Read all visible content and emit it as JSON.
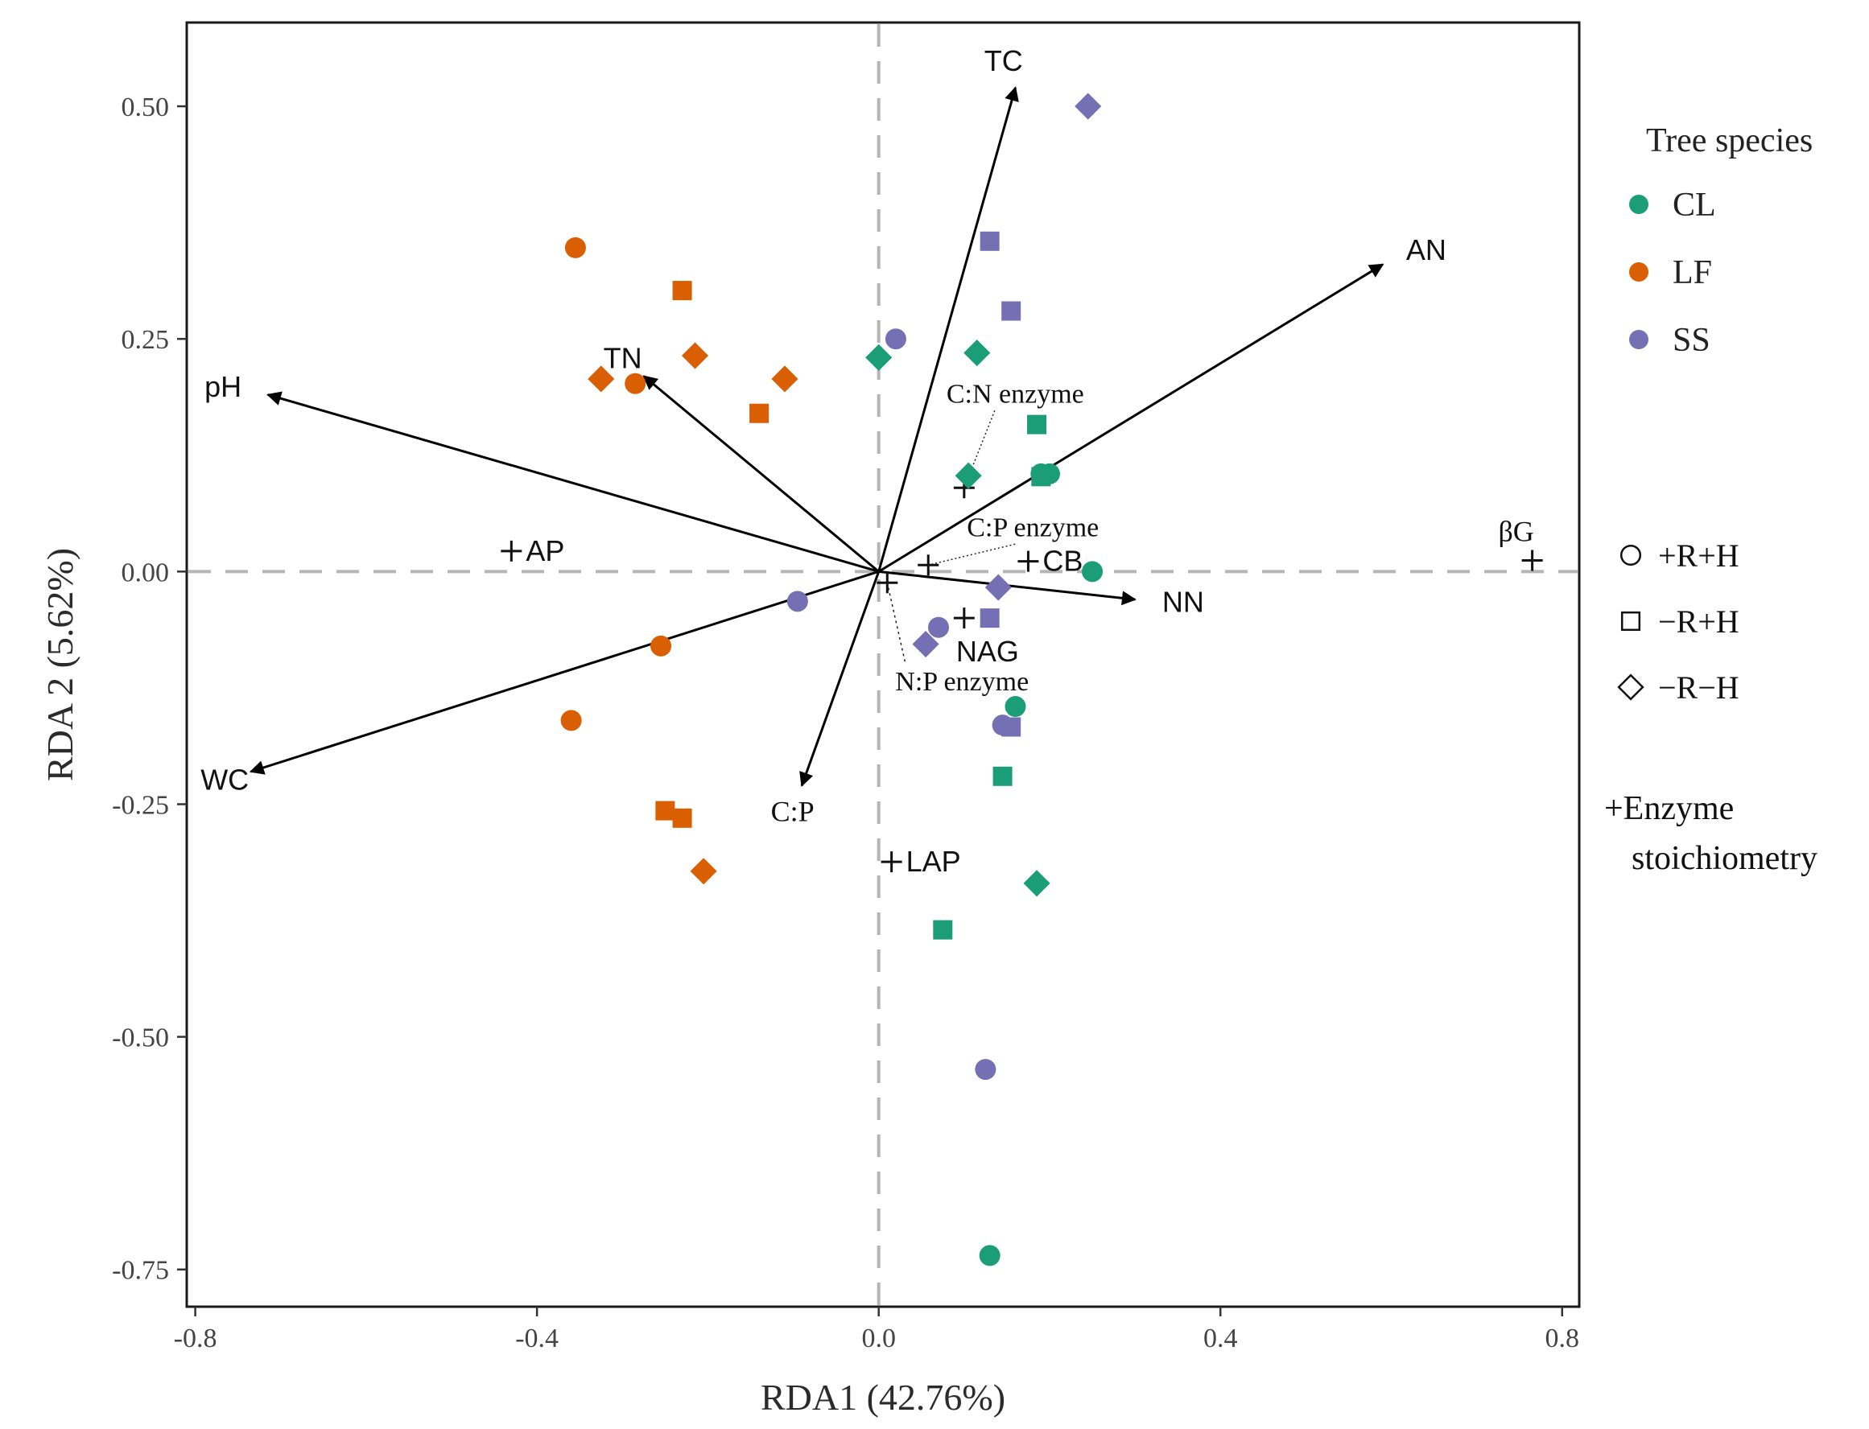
{
  "chart_data": {
    "type": "scatter",
    "subtype": "RDA biplot",
    "title": "",
    "xlabel": "RDA1 (42.76%)",
    "ylabel": "RDA 2 (5.62%)",
    "xlim": [
      -0.81,
      0.82
    ],
    "ylim": [
      -0.79,
      0.59
    ],
    "xticks": [
      -0.8,
      -0.4,
      0.0,
      0.4,
      0.8
    ],
    "xtick_labels": [
      "-0.8",
      "-0.4",
      "0.0",
      "0.4",
      "0.8"
    ],
    "yticks": [
      -0.75,
      -0.5,
      -0.25,
      0.0,
      0.25,
      0.5
    ],
    "ytick_labels": [
      "-0.75",
      "-0.50",
      "-0.25",
      "0.00",
      "0.25",
      "0.50"
    ],
    "grid": false,
    "reference_lines": {
      "x": 0,
      "y": 0,
      "style": "dashed"
    },
    "colors": {
      "CL": "#1b9e77",
      "LF": "#d95f02",
      "SS": "#7570b3",
      "arrow": "#000000",
      "refline": "#b5b5b5"
    },
    "series": [
      {
        "name": "CL",
        "points": [
          {
            "x": 0.25,
            "y": 0.0,
            "shape": "circle"
          },
          {
            "x": 0.2,
            "y": 0.105,
            "shape": "circle"
          },
          {
            "x": 0.19,
            "y": 0.105,
            "shape": "circle"
          },
          {
            "x": 0.16,
            "y": -0.145,
            "shape": "circle"
          },
          {
            "x": 0.13,
            "y": -0.735,
            "shape": "circle"
          },
          {
            "x": 0.185,
            "y": 0.158,
            "shape": "square"
          },
          {
            "x": 0.19,
            "y": 0.102,
            "shape": "square"
          },
          {
            "x": 0.145,
            "y": -0.22,
            "shape": "square"
          },
          {
            "x": 0.075,
            "y": -0.385,
            "shape": "square"
          },
          {
            "x": 0.0,
            "y": 0.23,
            "shape": "diamond"
          },
          {
            "x": 0.115,
            "y": 0.235,
            "shape": "diamond"
          },
          {
            "x": 0.105,
            "y": 0.103,
            "shape": "diamond"
          },
          {
            "x": 0.185,
            "y": -0.335,
            "shape": "diamond"
          }
        ]
      },
      {
        "name": "LF",
        "points": [
          {
            "x": -0.355,
            "y": 0.348,
            "shape": "circle"
          },
          {
            "x": -0.285,
            "y": 0.202,
            "shape": "circle"
          },
          {
            "x": -0.255,
            "y": -0.08,
            "shape": "circle"
          },
          {
            "x": -0.36,
            "y": -0.16,
            "shape": "circle"
          },
          {
            "x": -0.23,
            "y": 0.302,
            "shape": "square"
          },
          {
            "x": -0.14,
            "y": 0.17,
            "shape": "square"
          },
          {
            "x": -0.25,
            "y": -0.257,
            "shape": "square"
          },
          {
            "x": -0.23,
            "y": -0.265,
            "shape": "square"
          },
          {
            "x": -0.215,
            "y": 0.232,
            "shape": "diamond"
          },
          {
            "x": -0.325,
            "y": 0.207,
            "shape": "diamond"
          },
          {
            "x": -0.11,
            "y": 0.207,
            "shape": "diamond"
          },
          {
            "x": -0.205,
            "y": -0.322,
            "shape": "diamond"
          }
        ]
      },
      {
        "name": "SS",
        "points": [
          {
            "x": 0.02,
            "y": 0.25,
            "shape": "circle"
          },
          {
            "x": -0.095,
            "y": -0.032,
            "shape": "circle"
          },
          {
            "x": 0.07,
            "y": -0.06,
            "shape": "circle"
          },
          {
            "x": 0.145,
            "y": -0.165,
            "shape": "circle"
          },
          {
            "x": 0.125,
            "y": -0.535,
            "shape": "circle"
          },
          {
            "x": 0.13,
            "y": 0.355,
            "shape": "square"
          },
          {
            "x": 0.155,
            "y": 0.28,
            "shape": "square"
          },
          {
            "x": 0.13,
            "y": -0.05,
            "shape": "square"
          },
          {
            "x": 0.155,
            "y": -0.167,
            "shape": "square"
          },
          {
            "x": 0.245,
            "y": 0.5,
            "shape": "diamond"
          },
          {
            "x": 0.14,
            "y": -0.017,
            "shape": "diamond"
          },
          {
            "x": 0.055,
            "y": -0.078,
            "shape": "diamond"
          }
        ]
      }
    ],
    "arrows": [
      {
        "label": "TC",
        "x": 0.16,
        "y": 0.52,
        "label_anchor": "end"
      },
      {
        "label": "AN",
        "x": 0.59,
        "y": 0.33,
        "label_anchor": "start"
      },
      {
        "label": "TN",
        "x": -0.275,
        "y": 0.21,
        "label_anchor": "middle"
      },
      {
        "label": "pH",
        "x": -0.715,
        "y": 0.19,
        "label_anchor": "end"
      },
      {
        "label": "NN",
        "x": 0.3,
        "y": -0.03,
        "label_anchor": "start"
      },
      {
        "label": "WC",
        "x": -0.735,
        "y": -0.215,
        "label_anchor": "middle"
      },
      {
        "label": "C:P",
        "x": -0.09,
        "y": -0.23,
        "label_anchor": "middle"
      }
    ],
    "enzyme_points": [
      {
        "label": "AP",
        "x": -0.43,
        "y": 0.022
      },
      {
        "label": "βG",
        "x": 0.765,
        "y": 0.012
      },
      {
        "label": "CB",
        "x": 0.175,
        "y": 0.011
      },
      {
        "label": "NAG",
        "x": 0.1,
        "y": -0.05
      },
      {
        "label": "LAP",
        "x": 0.015,
        "y": -0.312
      },
      {
        "label": "C:N enzyme",
        "x": 0.1,
        "y": 0.09
      },
      {
        "label": "C:P enzyme",
        "x": 0.058,
        "y": 0.007
      },
      {
        "label": "N:P enzyme",
        "x": 0.01,
        "y": -0.012
      }
    ],
    "legend": {
      "placement": "right",
      "title": "Tree species",
      "species": [
        "CL",
        "LF",
        "SS"
      ],
      "shapes": [
        {
          "label": "+R+H",
          "shape": "circle"
        },
        {
          "label": "−R+H",
          "shape": "square"
        },
        {
          "label": "−R−H",
          "shape": "diamond"
        }
      ],
      "enzyme_line1": "+Enzyme",
      "enzyme_line2": "stoichiometry"
    }
  }
}
